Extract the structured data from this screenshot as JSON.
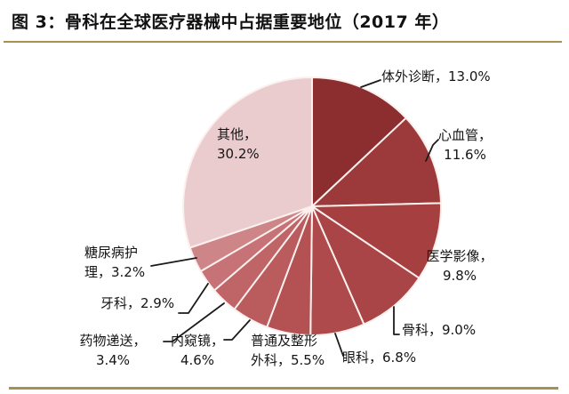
{
  "title": "图 3：骨科在全球医疗器械中占据重要地位（2017 年）",
  "colors": {
    "accent_rule": "#A6924E",
    "label_text": "#151515",
    "leader_line": "#1b1b1b",
    "slice_separator": "#FBF0ED",
    "background": "#FFFFFF"
  },
  "chart_data": {
    "type": "pie",
    "title": "骨科在全球医疗器械中占据重要地位（2017 年）",
    "unit": "percent",
    "total": 100.0,
    "start_angle_deg": 0,
    "direction": "clockwise",
    "legend_position": "none",
    "segments": [
      {
        "label": "体外诊断",
        "value": 13.0,
        "color": "#8C2E30",
        "display": [
          "体外诊断，13.0%"
        ]
      },
      {
        "label": "心血管",
        "value": 11.6,
        "color": "#9C393B",
        "display": [
          "心血管，",
          "11.6%"
        ]
      },
      {
        "label": "医学影像",
        "value": 9.8,
        "color": "#A53F40",
        "display": [
          "医学影像，",
          "9.8%"
        ]
      },
      {
        "label": "骨科",
        "value": 9.0,
        "color": "#A94547",
        "display": [
          "骨科，9.0%"
        ]
      },
      {
        "label": "眼科",
        "value": 6.8,
        "color": "#AE4A4B",
        "display": [
          "眼科，6.8%"
        ]
      },
      {
        "label": "普通及整形外科",
        "value": 5.5,
        "color": "#B35153",
        "display": [
          "普通及整形",
          "外科，5.5%"
        ]
      },
      {
        "label": "内窥镜",
        "value": 4.6,
        "color": "#BA5B5D",
        "display": [
          "内窥镜，",
          "4.6%"
        ]
      },
      {
        "label": "药物递送",
        "value": 3.4,
        "color": "#BF6567",
        "display": [
          "药物递送，",
          "3.4%"
        ]
      },
      {
        "label": "牙科",
        "value": 2.9,
        "color": "#C67276",
        "display": [
          "牙科，2.9%"
        ]
      },
      {
        "label": "糖尿病护理",
        "value": 3.2,
        "color": "#CE8588",
        "display": [
          "糖尿病护",
          "理，3.2%"
        ]
      },
      {
        "label": "其他",
        "value": 30.2,
        "color": "#EACCCF",
        "display": [
          "其他，",
          "30.2%"
        ]
      }
    ]
  }
}
